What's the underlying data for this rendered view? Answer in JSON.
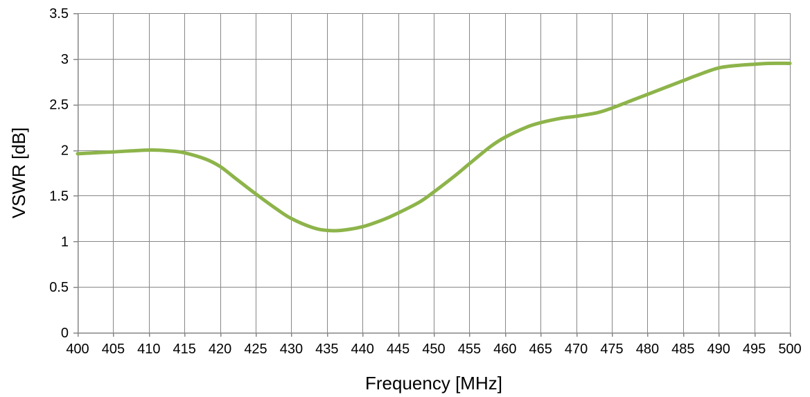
{
  "chart_data": {
    "type": "line",
    "title": "",
    "xlabel": "Frequency [MHz]",
    "ylabel": "VSWR [dB]",
    "xlim": [
      400,
      500
    ],
    "ylim": [
      0,
      3.5
    ],
    "x_ticks": [
      400,
      405,
      410,
      415,
      420,
      425,
      430,
      435,
      440,
      445,
      450,
      455,
      460,
      465,
      470,
      475,
      480,
      485,
      490,
      495,
      500
    ],
    "y_ticks": [
      0,
      0.5,
      1,
      1.5,
      2,
      2.5,
      3,
      3.5
    ],
    "x_tick_labels": [
      "400",
      "405",
      "410",
      "415",
      "420",
      "425",
      "430",
      "435",
      "440",
      "445",
      "450",
      "455",
      "460",
      "465",
      "470",
      "475",
      "480",
      "485",
      "490",
      "495",
      "500"
    ],
    "y_tick_labels": [
      "0",
      "0.5",
      "1",
      "1.5",
      "2",
      "2.5",
      "3",
      "3.5"
    ],
    "grid": true,
    "legend": "none",
    "series": [
      {
        "color": "#8DB44A",
        "x": [
          400,
          405,
          410,
          413,
          415,
          418,
          420,
          422,
          425,
          428,
          430,
          433,
          435,
          437,
          440,
          443,
          445,
          448,
          450,
          453,
          455,
          458,
          460,
          463,
          465,
          468,
          470,
          473,
          475,
          478,
          480,
          483,
          485,
          487,
          490,
          493,
          495,
          497,
          500
        ],
        "y": [
          1.96,
          1.98,
          2.0,
          1.99,
          1.97,
          1.9,
          1.82,
          1.7,
          1.52,
          1.35,
          1.25,
          1.15,
          1.12,
          1.12,
          1.16,
          1.24,
          1.31,
          1.43,
          1.54,
          1.72,
          1.85,
          2.04,
          2.14,
          2.25,
          2.3,
          2.35,
          2.37,
          2.41,
          2.46,
          2.55,
          2.61,
          2.7,
          2.76,
          2.82,
          2.9,
          2.93,
          2.94,
          2.95,
          2.95
        ]
      }
    ]
  }
}
